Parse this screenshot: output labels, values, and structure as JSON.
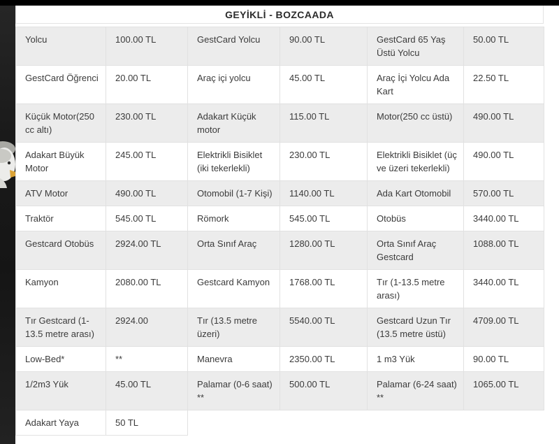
{
  "header": {
    "title": "GEYİKLİ - BOZCAADA"
  },
  "fare_table": {
    "column_pattern": [
      "fare-label",
      "fare-price",
      "fare-label",
      "fare-price",
      "fare-label",
      "fare-price"
    ],
    "rows": [
      [
        "Yolcu",
        "100.00 TL",
        "GestCard Yolcu",
        "90.00 TL",
        "GestCard 65 Yaş Üstü Yolcu",
        "50.00 TL"
      ],
      [
        "GestCard Öğrenci",
        "20.00 TL",
        "Araç içi yolcu",
        "45.00 TL",
        "Araç İçi Yolcu Ada Kart",
        "22.50 TL"
      ],
      [
        "Küçük Motor(250 cc altı)",
        "230.00 TL",
        "Adakart Küçük motor",
        "115.00 TL",
        "Motor(250 cc üstü)",
        "490.00 TL"
      ],
      [
        "Adakart Büyük Motor",
        "245.00 TL",
        "Elektrikli Bisiklet (iki tekerlekli)",
        "230.00 TL",
        "Elektrikli Bisiklet (üç ve üzeri tekerlekli)",
        "490.00 TL"
      ],
      [
        "ATV Motor",
        "490.00 TL",
        "Otomobil (1-7 Kişi)",
        "1140.00 TL",
        "Ada Kart Otomobil",
        "570.00 TL"
      ],
      [
        "Traktör",
        "545.00 TL",
        "Römork",
        "545.00 TL",
        "Otobüs",
        "3440.00 TL"
      ],
      [
        "Gestcard Otobüs",
        "2924.00 TL",
        "Orta Sınıf Araç",
        "1280.00 TL",
        "Orta Sınıf Araç Gestcard",
        "1088.00 TL"
      ],
      [
        "Kamyon",
        "2080.00 TL",
        "Gestcard Kamyon",
        "1768.00 TL",
        "Tır (1-13.5 metre arası)",
        "3440.00 TL"
      ],
      [
        "Tır Gestcard (1-13.5 metre arası)",
        "2924.00",
        "Tır (13.5 metre üzeri)",
        "5540.00 TL",
        "Gestcard Uzun Tır (13.5 metre üstü)",
        "4709.00 TL"
      ],
      [
        "Low-Bed*",
        "**",
        "Manevra",
        "2350.00 TL",
        "1 m3 Yük",
        "90.00 TL"
      ],
      [
        "1/2m3 Yük",
        "45.00 TL",
        "Palamar (0-6 saat) **",
        "500.00 TL",
        "Palamar (6-24 saat) **",
        "1065.00 TL"
      ],
      [
        "Adakart Yaya",
        "50 TL",
        null,
        null,
        null,
        null
      ]
    ]
  },
  "colors": {
    "top_bar": "#000000",
    "side_strip_dark": "#1a1a1a",
    "row_shaded": "#ececec",
    "row_plain": "#ffffff",
    "cell_border": "#e1e1e1",
    "text": "#3b3b3b",
    "title_text": "#2b2b2b"
  },
  "icons": {
    "seagull": "seagull-photo"
  }
}
